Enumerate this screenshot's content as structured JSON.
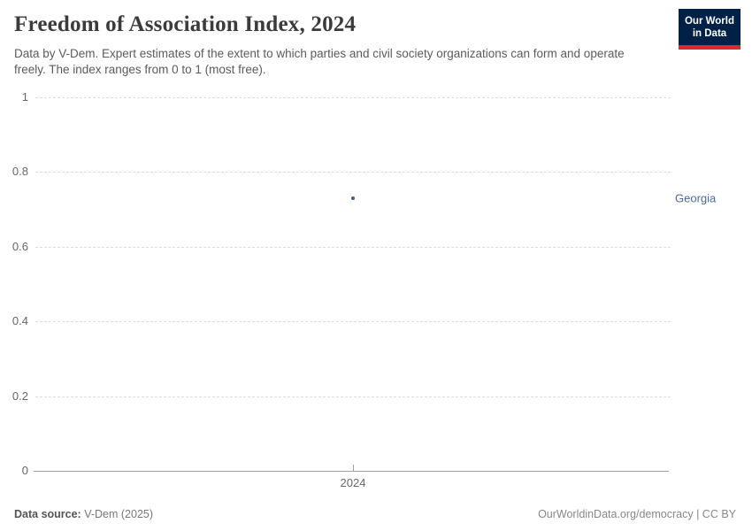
{
  "header": {
    "title": "Freedom of Association Index, 2024",
    "subtitle": "Data by V-Dem. Expert estimates of the extent to which parties and civil society organizations can form and operate freely. The index ranges from 0 to 1 (most free).",
    "logo": {
      "line1": "Our World",
      "line2": "in Data",
      "bg_color": "#002147",
      "bar_color": "#d42b2f"
    }
  },
  "chart_data": {
    "type": "scatter",
    "title": "Freedom of Association Index, 2024",
    "x": [
      2024
    ],
    "series": [
      {
        "name": "Georgia",
        "values": [
          0.73
        ],
        "point_color": "#3d5c8f",
        "label_color": "#4c6a9c"
      }
    ],
    "xlabel": "",
    "ylabel": "",
    "ylim": [
      0,
      1
    ],
    "yticks": [
      0,
      0.2,
      0.4,
      0.6,
      0.8,
      1
    ],
    "ytick_labels": [
      "0",
      "0.2",
      "0.4",
      "0.6",
      "0.8",
      "1"
    ],
    "xtick_labels": [
      "2024"
    ],
    "grid": "horizontal-dashed",
    "legend_position": "right-of-plot"
  },
  "footer": {
    "source_label": "Data source:",
    "source_value": " V-Dem (2025)",
    "right_text": "OurWorldinData.org/democracy | CC BY"
  }
}
